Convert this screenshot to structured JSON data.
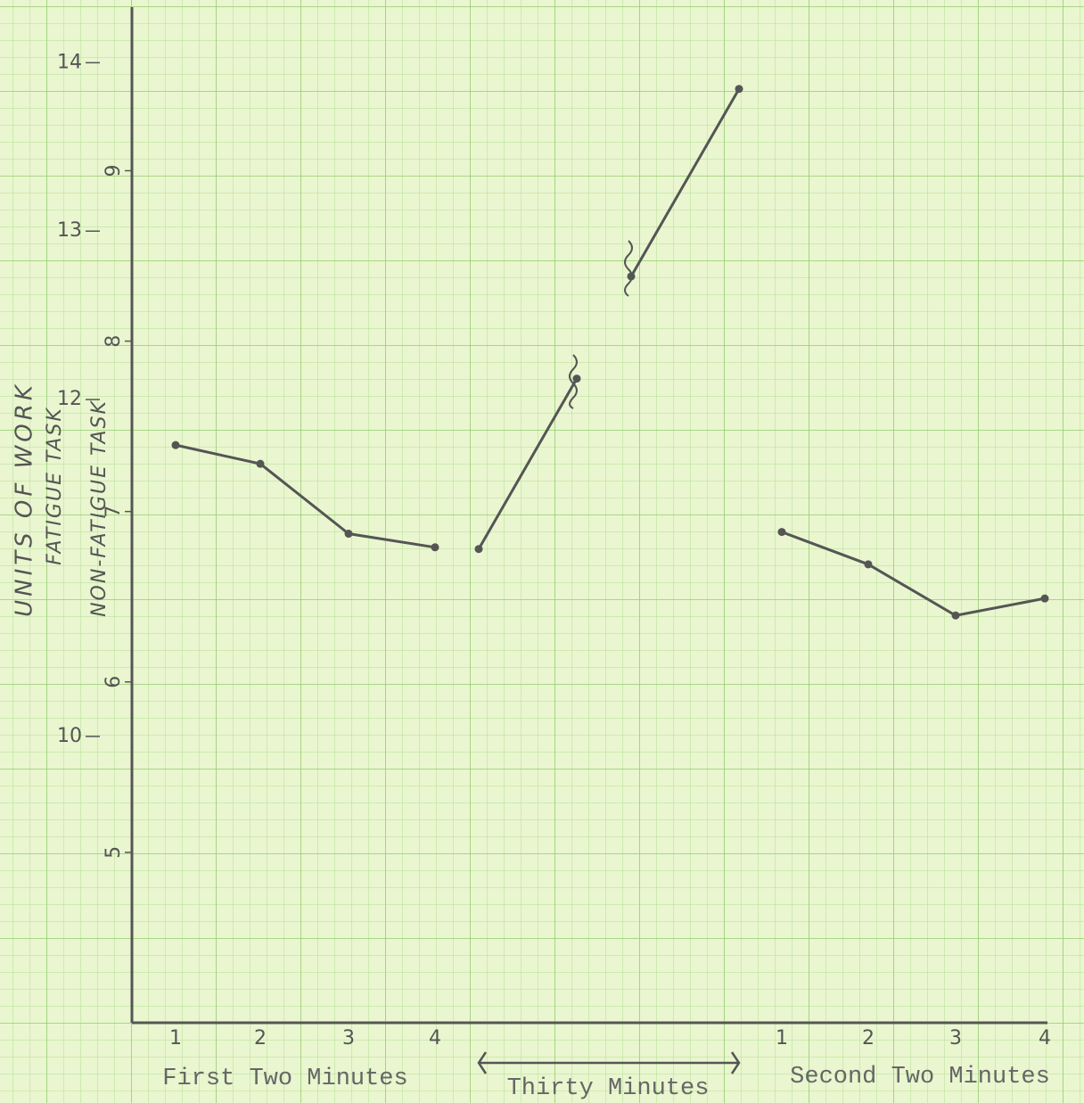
{
  "chart_data": {
    "type": "line",
    "y_label": "UNITS OF WORK",
    "y2_label": "FATIGUE TASK",
    "y_label_inner": "NON-FATIGUE TASK",
    "groups": [
      "First Two Minutes",
      "Thirty Minutes",
      "Second Two Minutes"
    ],
    "categories": [
      "1",
      "2",
      "3",
      "4",
      null,
      null,
      null,
      null,
      null,
      null,
      null,
      "1",
      "2",
      "3",
      "4"
    ],
    "values": [
      7.39,
      7.28,
      6.87,
      6.79,
      null,
      6.78,
      7.78,
      null,
      8.38,
      9.48,
      null,
      6.88,
      6.69,
      6.39,
      6.49
    ],
    "color": "#555555",
    "ylim": [
      4,
      9.96
    ],
    "yticks": [
      5,
      6,
      7,
      8,
      9
    ],
    "y2lim": [
      8.3,
      14.33
    ],
    "y2ticks": [
      10,
      12,
      13,
      14
    ],
    "grid": true
  }
}
